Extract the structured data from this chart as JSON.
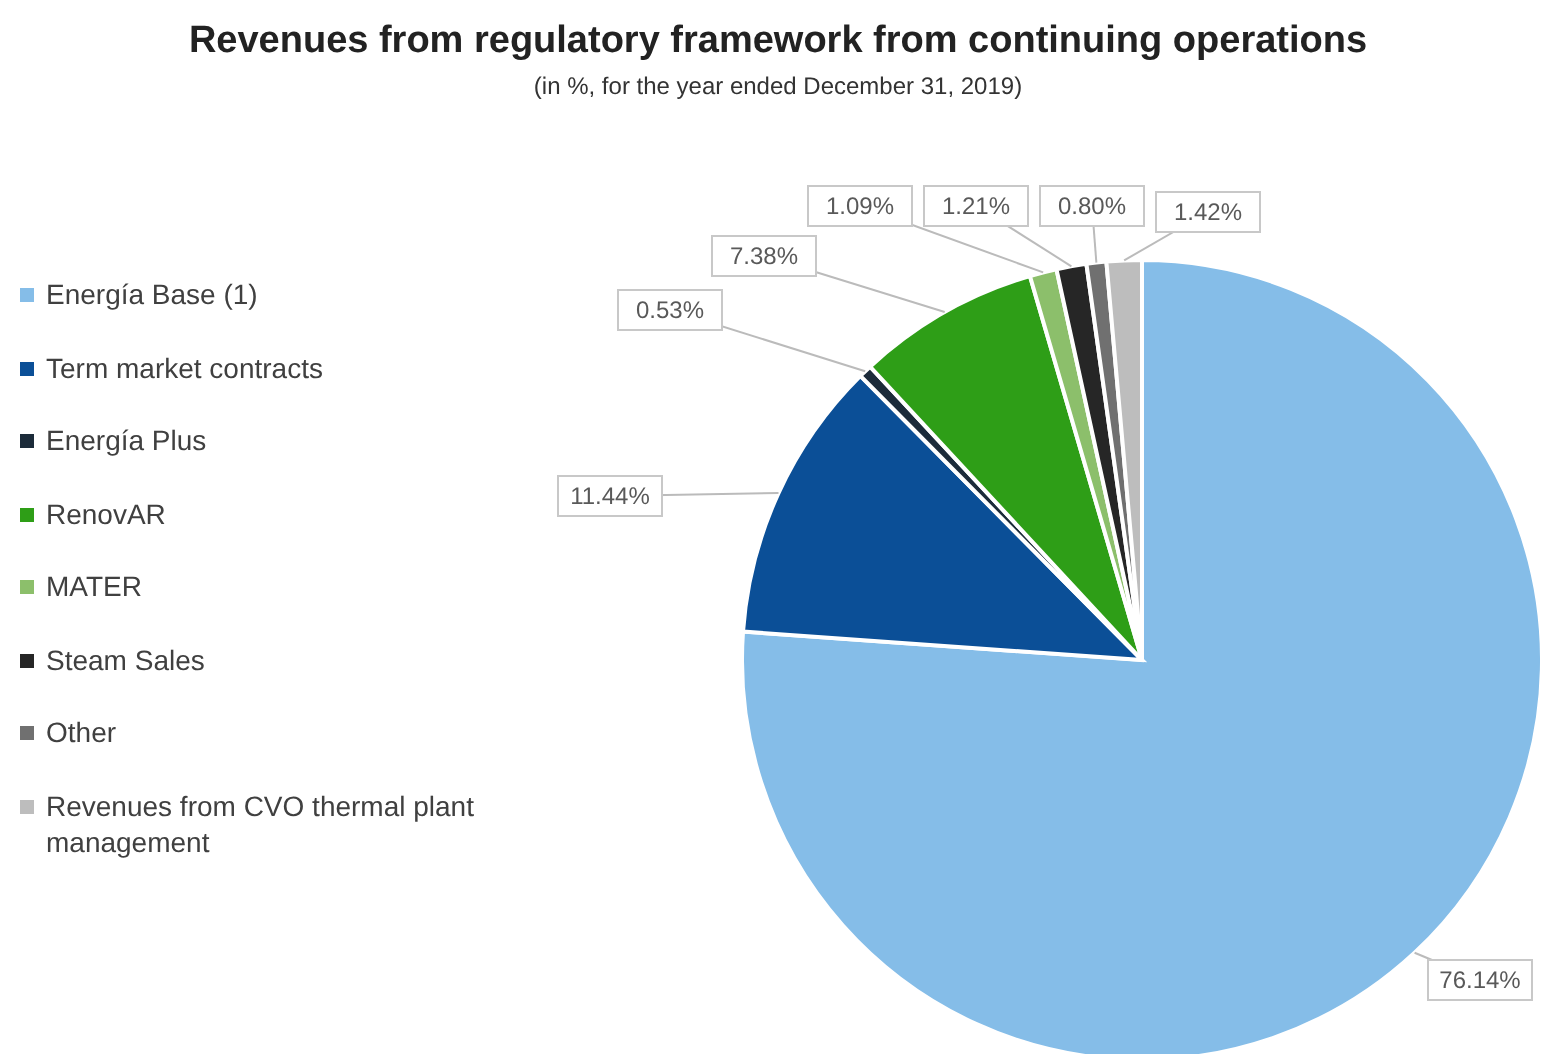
{
  "chart_data": {
    "type": "pie",
    "title": "Revenues from regulatory framework from continuing operations",
    "subtitle": "(in %, for the year ended December 31, 2019)",
    "categories": [
      "Energía Base (1)",
      "Term market contracts",
      "Energía Plus",
      "RenovAR",
      "MATER",
      "Steam Sales",
      "Other",
      "Revenues from CVO thermal plant management"
    ],
    "values": [
      76.14,
      11.44,
      0.53,
      7.38,
      1.09,
      1.21,
      0.8,
      1.42
    ],
    "value_labels": [
      "76.14%",
      "11.44%",
      "0.53%",
      "7.38%",
      "1.09%",
      "1.21%",
      "0.80%",
      "1.42%"
    ],
    "colors": [
      "#85bde8",
      "#0b4f97",
      "#1c2b3a",
      "#2e9e17",
      "#8cbf6b",
      "#262626",
      "#707070",
      "#bdbdbd"
    ],
    "legend": "left"
  }
}
